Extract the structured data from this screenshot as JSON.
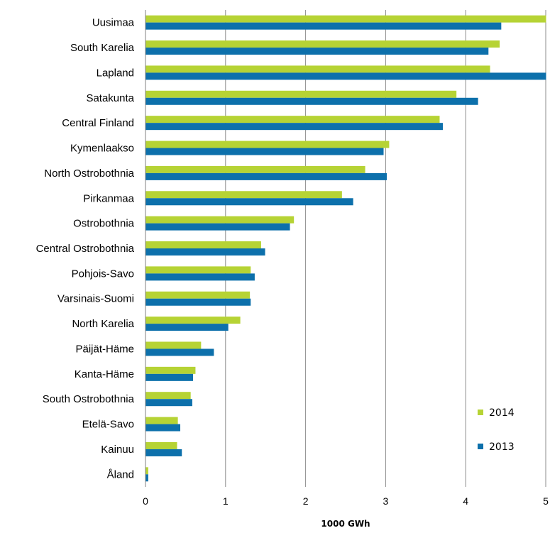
{
  "chart_data": {
    "type": "bar",
    "orientation": "horizontal",
    "title": "",
    "xlabel": "1000 GWh",
    "ylabel": "",
    "xlim": [
      0,
      5
    ],
    "x_ticks": [
      "0",
      "1",
      "2",
      "3",
      "4",
      "5"
    ],
    "grid": "vertical",
    "legend_position": "bottom-right",
    "categories": [
      "Uusimaa",
      "South Karelia",
      "Lapland",
      "Satakunta",
      "Central Finland",
      "Kymenlaakso",
      "North Ostrobothnia",
      "Pirkanmaa",
      "Ostrobothnia",
      "Central Ostrobothnia",
      "Pohjois-Savo",
      "Varsinais-Suomi",
      "North Karelia",
      "Päijät-Häme",
      "Kanta-Häme",
      "South Ostrobothnia",
      "Etelä-Savo",
      "Kainuu",
      "Åland"
    ],
    "series": [
      {
        "name": "2014",
        "color": "#b6d334",
        "values": [
          5.0,
          4.42,
          4.3,
          3.88,
          3.67,
          3.04,
          2.74,
          2.45,
          1.85,
          1.44,
          1.31,
          1.3,
          1.18,
          0.69,
          0.62,
          0.56,
          0.4,
          0.39,
          0.03
        ]
      },
      {
        "name": "2013",
        "color": "#0d70ab",
        "values": [
          4.44,
          4.28,
          5.0,
          4.15,
          3.71,
          2.97,
          3.01,
          2.59,
          1.8,
          1.49,
          1.36,
          1.31,
          1.03,
          0.85,
          0.59,
          0.58,
          0.43,
          0.45,
          0.03
        ]
      }
    ]
  }
}
